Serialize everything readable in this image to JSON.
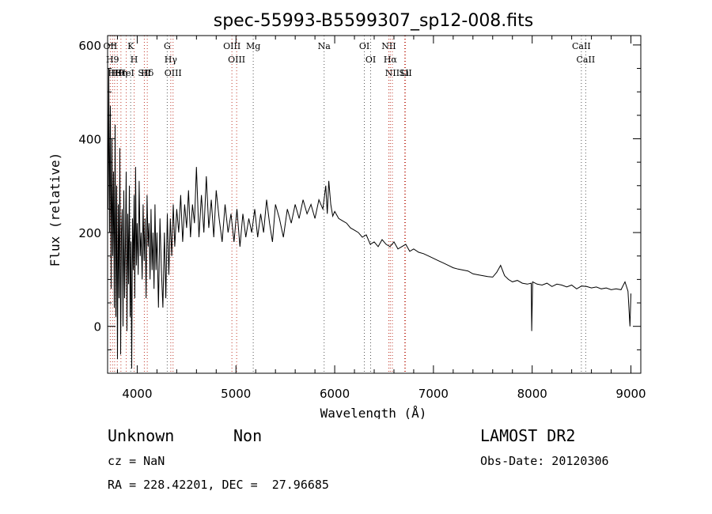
{
  "chart_data": {
    "type": "line",
    "title": "spec-55993-B5599307_sp12-008.fits",
    "xlabel": "Wavelength (Å)",
    "ylabel": "Flux (relative)",
    "xlim": [
      3700,
      9100
    ],
    "ylim": [
      -100,
      620
    ],
    "xticks": [
      4000,
      5000,
      6000,
      7000,
      8000,
      9000
    ],
    "yticks": [
      0,
      200,
      400,
      600
    ],
    "grid": false,
    "series": [
      {
        "x": [
          3705,
          3712,
          3720,
          3728,
          3736,
          3744,
          3752,
          3760,
          3768,
          3776,
          3784,
          3792,
          3800,
          3808,
          3816,
          3824,
          3832,
          3840,
          3848,
          3856,
          3864,
          3872,
          3880,
          3888,
          3896,
          3904,
          3912,
          3920,
          3928,
          3936,
          3944,
          3952,
          3960,
          3968,
          3976,
          3984,
          3992,
          4000,
          4010,
          4020,
          4030,
          4040,
          4050,
          4060,
          4070,
          4080,
          4090,
          4100,
          4110,
          4120,
          4130,
          4140,
          4150,
          4160,
          4170,
          4180,
          4190,
          4200,
          4215,
          4230,
          4245,
          4260,
          4275,
          4290,
          4305,
          4320,
          4335,
          4350,
          4365,
          4380,
          4400,
          4420,
          4440,
          4460,
          4480,
          4500,
          4520,
          4540,
          4560,
          4580,
          4600,
          4625,
          4650,
          4675,
          4700,
          4725,
          4750,
          4775,
          4800,
          4830,
          4860,
          4890,
          4920,
          4950,
          4980,
          5010,
          5040,
          5070,
          5100,
          5130,
          5160,
          5190,
          5220,
          5250,
          5280,
          5310,
          5340,
          5370,
          5400,
          5440,
          5480,
          5520,
          5560,
          5600,
          5640,
          5680,
          5720,
          5760,
          5800,
          5840,
          5880,
          5910,
          5925,
          5940,
          5960,
          5980,
          6000,
          6040,
          6080,
          6120,
          6160,
          6200,
          6240,
          6280,
          6320,
          6360,
          6400,
          6440,
          6480,
          6520,
          6560,
          6600,
          6640,
          6680,
          6720,
          6760,
          6800,
          6850,
          6900,
          6950,
          7000,
          7050,
          7100,
          7150,
          7200,
          7250,
          7300,
          7350,
          7400,
          7450,
          7500,
          7550,
          7600,
          7640,
          7680,
          7720,
          7760,
          7800,
          7850,
          7900,
          7950,
          7990,
          7995,
          8005,
          8050,
          8100,
          8150,
          8200,
          8250,
          8300,
          8350,
          8400,
          8450,
          8500,
          8550,
          8600,
          8650,
          8700,
          8750,
          8800,
          8850,
          8900,
          8940,
          8970,
          8990,
          9000
        ],
        "y": [
          250,
          550,
          200,
          470,
          80,
          400,
          150,
          330,
          40,
          430,
          20,
          300,
          -70,
          260,
          60,
          380,
          -60,
          200,
          250,
          0,
          290,
          60,
          170,
          330,
          -10,
          240,
          90,
          300,
          20,
          180,
          -90,
          230,
          120,
          280,
          60,
          340,
          130,
          220,
          110,
          310,
          150,
          200,
          100,
          260,
          140,
          230,
          60,
          280,
          170,
          220,
          100,
          250,
          120,
          200,
          80,
          260,
          120,
          200,
          40,
          230,
          120,
          40,
          200,
          60,
          240,
          110,
          230,
          150,
          260,
          170,
          250,
          200,
          280,
          180,
          260,
          210,
          290,
          190,
          260,
          220,
          340,
          190,
          280,
          200,
          320,
          210,
          270,
          190,
          290,
          230,
          180,
          260,
          200,
          240,
          180,
          250,
          170,
          240,
          190,
          230,
          200,
          250,
          190,
          240,
          200,
          270,
          220,
          180,
          260,
          230,
          190,
          250,
          220,
          260,
          230,
          270,
          240,
          260,
          230,
          270,
          250,
          300,
          240,
          310,
          260,
          235,
          245,
          230,
          225,
          220,
          210,
          205,
          200,
          190,
          195,
          175,
          180,
          170,
          185,
          175,
          170,
          180,
          165,
          170,
          175,
          160,
          165,
          158,
          155,
          150,
          145,
          140,
          135,
          130,
          125,
          122,
          120,
          118,
          112,
          110,
          108,
          106,
          105,
          115,
          130,
          108,
          100,
          95,
          98,
          92,
          90,
          92,
          -10,
          95,
          90,
          88,
          92,
          85,
          90,
          88,
          84,
          88,
          80,
          86,
          85,
          82,
          84,
          80,
          82,
          78,
          80,
          78,
          95,
          75,
          0,
          70
        ]
      }
    ],
    "lines": [
      {
        "x": 3727,
        "label": "OII"
      },
      {
        "x": 3750,
        "label": "H9"
      },
      {
        "x": 3771,
        "label": "H8"
      },
      {
        "x": 3798,
        "label": "Hθ"
      },
      {
        "x": 3835,
        "label": "Hη"
      },
      {
        "x": 3889,
        "label": "HeI"
      },
      {
        "x": 3934,
        "label": "K"
      },
      {
        "x": 3969,
        "label": "H"
      },
      {
        "x": 4072,
        "label": "SII"
      },
      {
        "x": 4102,
        "label": "Hδ"
      },
      {
        "x": 4304,
        "label": "G"
      },
      {
        "x": 4340,
        "label": "Hγ"
      },
      {
        "x": 4363,
        "label": "OIII"
      },
      {
        "x": 4959,
        "label": "OIII"
      },
      {
        "x": 5007,
        "label": "OIII"
      },
      {
        "x": 5175,
        "label": "Mg"
      },
      {
        "x": 5893,
        "label": "Na"
      },
      {
        "x": 6300,
        "label": "OI"
      },
      {
        "x": 6364,
        "label": "OI"
      },
      {
        "x": 6548,
        "label": "NII"
      },
      {
        "x": 6563,
        "label": "Hα"
      },
      {
        "x": 6584,
        "label": "NII"
      },
      {
        "x": 6708,
        "label": "Li"
      },
      {
        "x": 6717,
        "label": "SII"
      },
      {
        "x": 8498,
        "label": "CaII"
      },
      {
        "x": 8542,
        "label": "CaII"
      }
    ]
  },
  "footer": {
    "class_label": "Unknown",
    "subclass_label": "Non",
    "survey": "LAMOST DR2",
    "cz": "cz = NaN",
    "obs_date": "Obs-Date: 20120306",
    "coords": "RA = 228.42201, DEC =  27.96685"
  },
  "colors": {
    "axis": "#000000",
    "spectrum": "#000000",
    "line_marker": "#c0392b",
    "line_marker_alt": "#555555"
  }
}
